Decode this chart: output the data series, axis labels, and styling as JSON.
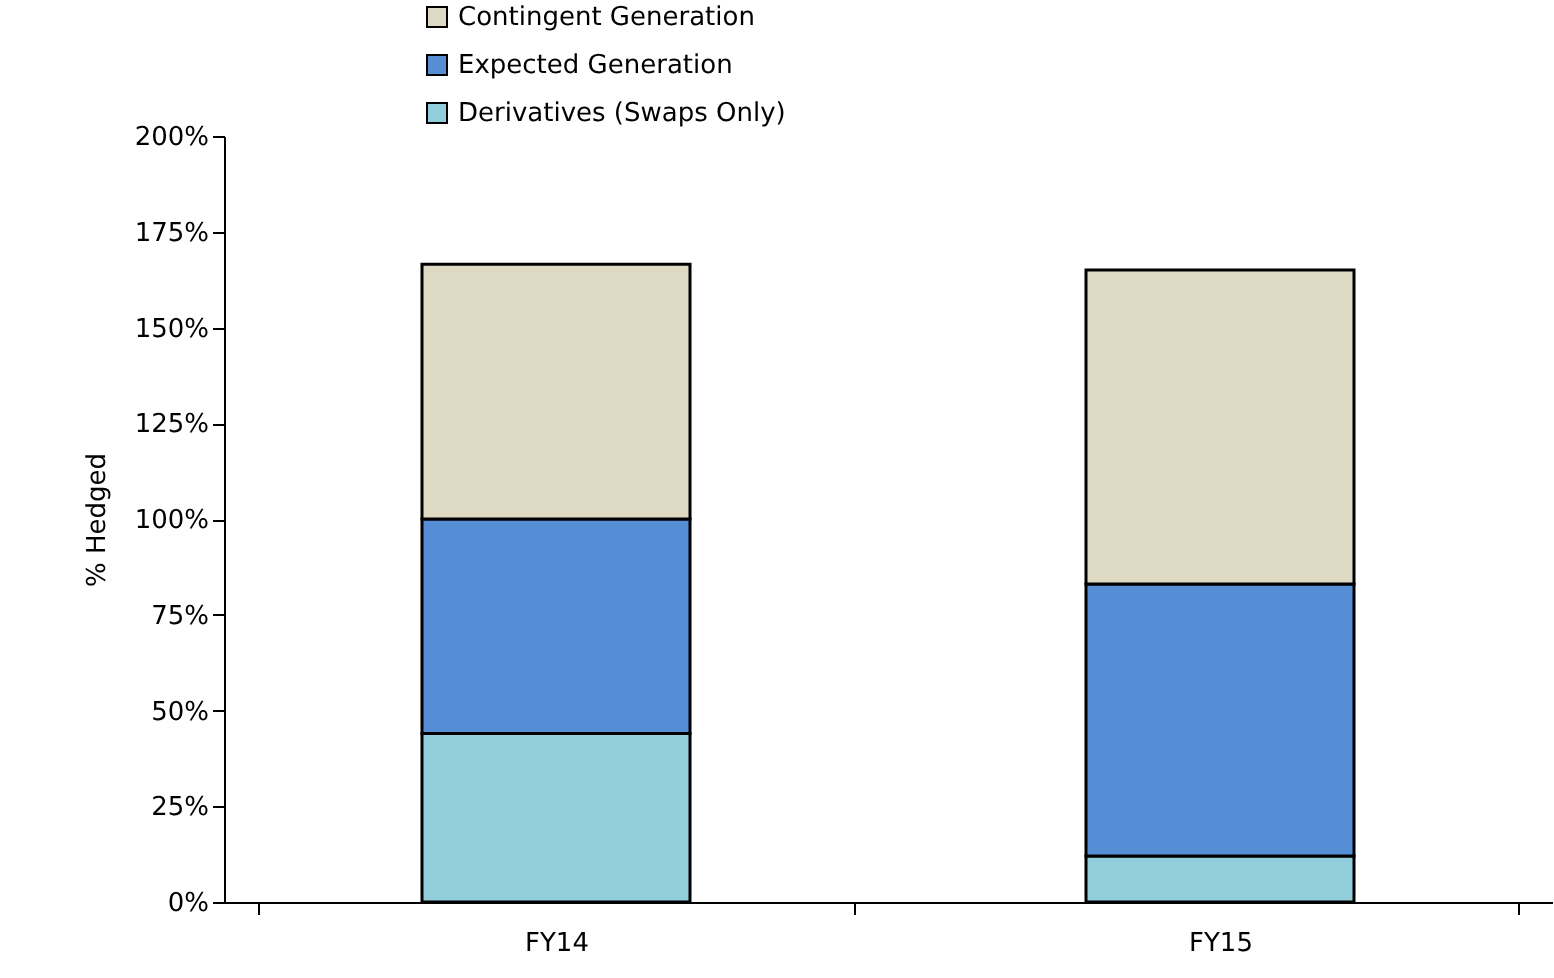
{
  "chart_data": {
    "type": "bar",
    "stacked": true,
    "ylabel": "% Hedged",
    "categories": [
      "FY14",
      "FY15"
    ],
    "series": [
      {
        "name": "Derivatives (Swaps Only)",
        "color": "#92cddc",
        "values": [
          44,
          12
        ]
      },
      {
        "name": "Expected Generation",
        "color": "#558ed5",
        "values": [
          56,
          71
        ]
      },
      {
        "name": "Contingent Generation",
        "color": "#ddd9c3",
        "values": [
          66.5,
          82
        ]
      }
    ],
    "ylim": [
      0,
      200
    ],
    "yticks": [
      {
        "value": 0,
        "label": "0%"
      },
      {
        "value": 25,
        "label": "25%"
      },
      {
        "value": 50,
        "label": "50%"
      },
      {
        "value": 75,
        "label": "75%"
      },
      {
        "value": 100,
        "label": "100%"
      },
      {
        "value": 125,
        "label": "125%"
      },
      {
        "value": 150,
        "label": "150%"
      },
      {
        "value": 175,
        "label": "175%"
      },
      {
        "value": 200,
        "label": "200%"
      }
    ],
    "grid": false,
    "legend": "top"
  }
}
